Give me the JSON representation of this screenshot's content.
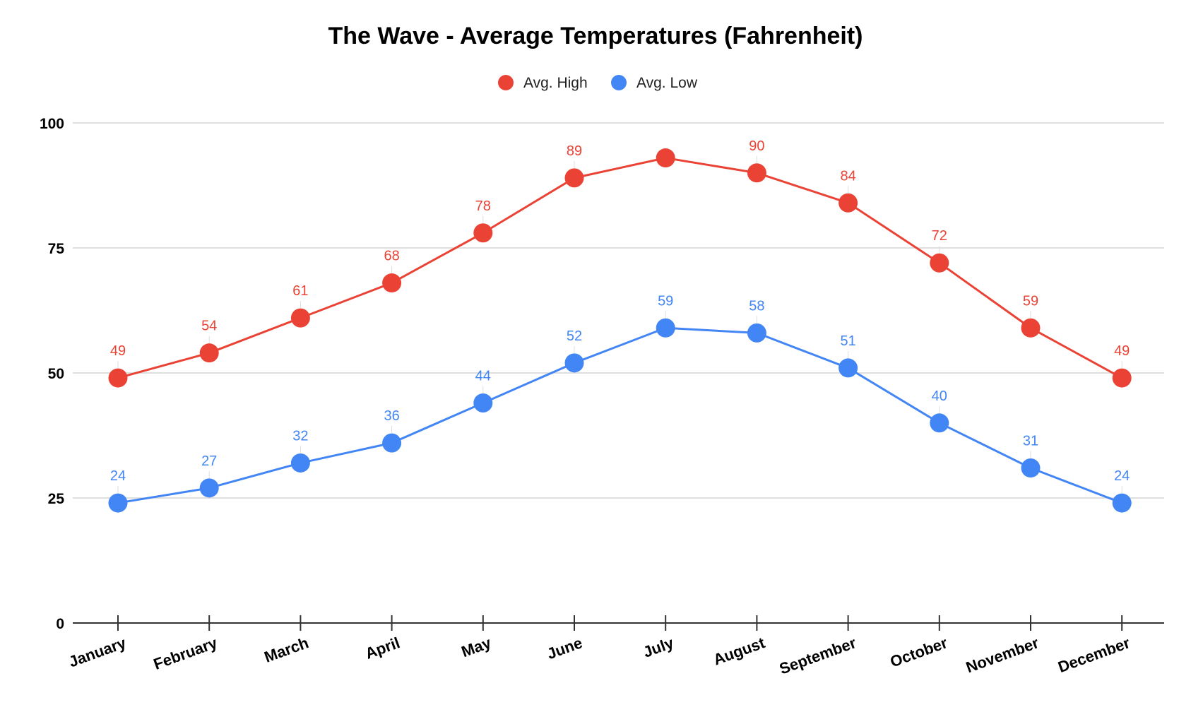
{
  "chart_data": {
    "type": "line",
    "title": "The Wave - Average Temperatures (Fahrenheit)",
    "xlabel": "",
    "ylabel": "",
    "categories": [
      "January",
      "February",
      "March",
      "April",
      "May",
      "June",
      "July",
      "August",
      "September",
      "October",
      "November",
      "December"
    ],
    "series": [
      {
        "name": "Avg. High",
        "color": "#ea4335",
        "values": [
          49,
          54,
          61,
          68,
          78,
          89,
          93,
          90,
          84,
          72,
          59,
          49
        ],
        "labels": [
          "49",
          "54",
          "61",
          "68",
          "78",
          "89",
          "",
          "90",
          "84",
          "72",
          "59",
          "49"
        ]
      },
      {
        "name": "Avg. Low",
        "color": "#4285f4",
        "values": [
          24,
          27,
          32,
          36,
          44,
          52,
          59,
          58,
          51,
          40,
          31,
          24
        ],
        "labels": [
          "24",
          "27",
          "32",
          "36",
          "44",
          "52",
          "59",
          "58",
          "51",
          "40",
          "31",
          "24"
        ]
      }
    ],
    "ylim": [
      0,
      100
    ],
    "yticks": [
      "0",
      "25",
      "50",
      "75",
      "100"
    ],
    "grid": true,
    "legend_position": "top-center"
  }
}
